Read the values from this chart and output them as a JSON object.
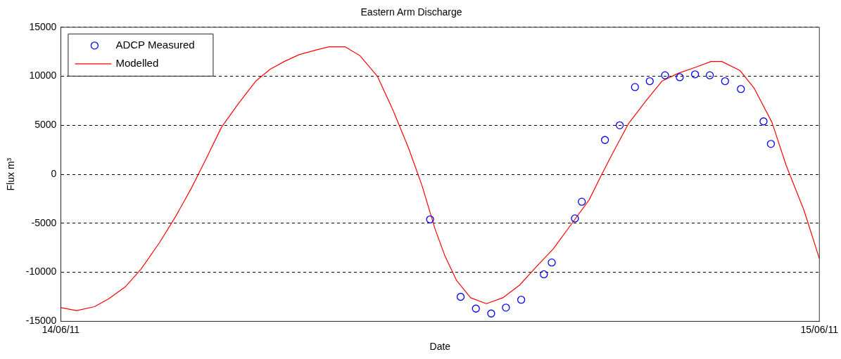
{
  "chart_data": {
    "type": "line",
    "title": "Eastern Arm Discharge",
    "xlabel": "Date",
    "ylabel": "Flux m³",
    "xlim": [
      "--06-14",
      "--06-15"
    ],
    "xticks": [
      {
        "value": "--06-14",
        "label": "14/06/11"
      },
      {
        "value": "--06-15",
        "label": "15/06/11"
      }
    ],
    "ylim": [
      -15000,
      15000
    ],
    "yticks": [
      -15000,
      -10000,
      -5000,
      0,
      5000,
      10000,
      15000
    ],
    "grid": "y",
    "legend": "top left",
    "series": [
      {
        "name": "ADCP Measured",
        "type": "scatter",
        "marker": "circle",
        "color": "#0000ff",
        "x": [
          "--06-14T11:41",
          "--06-14T12:39",
          "--06-14T13:08",
          "--06-14T13:37",
          "--06-14T14:05",
          "--06-14T14:34",
          "--06-14T15:17",
          "--06-14T15:32",
          "--06-14T16:16",
          "--06-14T16:29",
          "--06-14T17:13",
          "--06-14T17:41",
          "--06-14T18:10",
          "--06-14T18:38",
          "--06-14T19:07",
          "--06-14T19:35",
          "--06-14T20:04",
          "--06-14T20:32",
          "--06-14T21:01",
          "--06-14T21:31",
          "--06-14T22:14",
          "--06-14T22:28"
        ],
        "values": [
          -4600,
          -12500,
          -13700,
          -14200,
          -13600,
          -12800,
          -10200,
          -9000,
          -4500,
          -2800,
          3500,
          5000,
          8900,
          9500,
          10100,
          9900,
          10200,
          10100,
          9500,
          8700,
          5400,
          3100
        ]
      },
      {
        "name": "Modelled",
        "line_style": "solid",
        "color": "#ff0000",
        "x": [
          "--06-14T00:00",
          "--06-14T00:30",
          "--06-14T01:04",
          "--06-14T01:31",
          "--06-14T02:02",
          "--06-14T02:32",
          "--06-14T03:07",
          "--06-14T03:38",
          "--06-14T04:08",
          "--06-14T04:35",
          "--06-14T05:05",
          "--06-14T05:37",
          "--06-14T06:10",
          "--06-14T06:37",
          "--06-14T07:04",
          "--06-14T07:32",
          "--06-14T08:06",
          "--06-14T08:29",
          "--06-14T09:00",
          "--06-14T09:28",
          "--06-14T10:01",
          "--06-14T10:31",
          "--06-14T11:00",
          "--06-14T11:26",
          "--06-14T11:50",
          "--06-14T12:09",
          "--06-14T12:31",
          "--06-14T12:58",
          "--06-14T13:28",
          "--06-14T13:59",
          "--06-14T14:31",
          "--06-14T15:05",
          "--06-14T15:35",
          "--06-14T16:09",
          "--06-14T16:43",
          "--06-14T17:06",
          "--06-14T17:28",
          "--06-14T17:58",
          "--06-14T18:31",
          "--06-14T19:01",
          "--06-14T19:32",
          "--06-14T20:04",
          "--06-14T20:34",
          "--06-14T20:55",
          "--06-14T21:29",
          "--06-14T21:56",
          "--06-14T22:30",
          "--06-14T22:57",
          "--06-14T23:31",
          "--06-15T00:00"
        ],
        "values": [
          -13600,
          -13900,
          -13500,
          -12700,
          -11500,
          -9700,
          -7000,
          -4300,
          -1400,
          1500,
          4800,
          7200,
          9500,
          10700,
          11500,
          12200,
          12700,
          13000,
          13000,
          12100,
          10000,
          6500,
          2700,
          -1200,
          -5500,
          -8300,
          -10800,
          -12600,
          -13200,
          -12600,
          -11300,
          -9300,
          -7600,
          -5100,
          -2600,
          -100,
          2200,
          5200,
          7500,
          9500,
          10300,
          10900,
          11500,
          11500,
          10600,
          8800,
          5300,
          900,
          -3700,
          -8600
        ]
      }
    ]
  }
}
